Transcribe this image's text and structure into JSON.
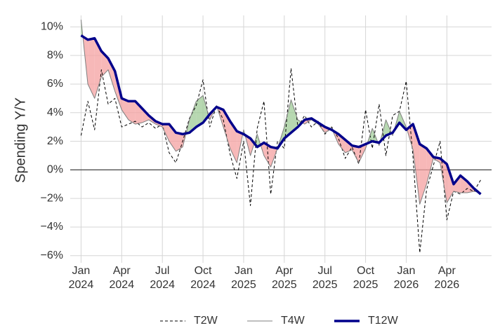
{
  "chart_data": {
    "type": "line",
    "ylabel": "Spending Y/Y",
    "x": [
      0,
      0.5,
      1,
      1.5,
      2,
      2.5,
      3,
      3.5,
      4,
      4.5,
      5,
      5.5,
      6,
      6.5,
      7,
      7.5,
      8,
      8.5,
      9,
      9.5,
      10,
      10.5,
      11,
      11.5,
      12,
      12.5,
      13,
      13.5,
      14,
      14.5,
      15,
      15.5,
      16,
      16.5,
      17,
      17.5,
      18,
      18.5,
      19,
      19.5,
      20,
      20.5,
      21,
      21.5,
      22,
      22.5,
      23,
      23.5,
      24,
      24.5,
      25,
      25.5,
      26,
      26.5,
      27,
      27.5,
      28,
      28.5,
      29,
      29.5
    ],
    "series": [
      {
        "name": "T2W",
        "color": "#000000",
        "style": "dashed",
        "width": 1,
        "values": [
          2.4,
          4.8,
          2.8,
          7.0,
          4.6,
          5.0,
          3.0,
          3.2,
          3.4,
          3.0,
          3.3,
          2.9,
          3.2,
          1.2,
          0.5,
          2.0,
          3.6,
          4.5,
          6.3,
          3.0,
          4.5,
          3.5,
          1.1,
          -0.6,
          2.0,
          -2.5,
          2.9,
          4.8,
          -1.7,
          2.0,
          1.5,
          7.1,
          3.0,
          3.8,
          3.0,
          3.4,
          2.5,
          3.0,
          2.2,
          0.8,
          1.6,
          0.4,
          4.2,
          1.5,
          4.6,
          1.0,
          3.8,
          4.1,
          6.2,
          0.9,
          -5.8,
          -1.4,
          0.3,
          2.0,
          -3.5,
          -1.5,
          -1.7,
          -1.3,
          -1.5,
          -0.7
        ]
      },
      {
        "name": "T4W",
        "color": "#7f7f7f",
        "style": "solid",
        "width": 1,
        "values": [
          10.5,
          6.0,
          5.0,
          6.5,
          7.0,
          5.5,
          4.2,
          3.5,
          3.2,
          3.3,
          3.5,
          3.2,
          3.0,
          2.0,
          1.3,
          1.6,
          3.5,
          4.8,
          5.2,
          3.5,
          4.5,
          3.0,
          1.5,
          0.5,
          2.8,
          1.0,
          2.5,
          1.0,
          0.2,
          1.5,
          3.0,
          4.9,
          3.5,
          3.2,
          3.5,
          3.2,
          2.6,
          2.9,
          1.8,
          1.2,
          1.4,
          0.5,
          1.5,
          2.9,
          1.7,
          3.5,
          2.4,
          4.1,
          3.0,
          1.4,
          -2.4,
          -1.0,
          0.8,
          0.5,
          -2.3,
          -1.5,
          -1.6,
          -1.6,
          -1.5,
          -1.6
        ]
      },
      {
        "name": "T12W",
        "color": "#00008b",
        "style": "solid",
        "width": 3.5,
        "values": [
          9.4,
          9.1,
          9.2,
          8.3,
          7.8,
          6.9,
          5.0,
          4.8,
          4.8,
          4.3,
          3.8,
          3.4,
          3.2,
          3.2,
          2.6,
          2.5,
          2.6,
          3.0,
          3.3,
          3.9,
          4.4,
          4.2,
          3.4,
          2.7,
          2.5,
          2.2,
          1.6,
          1.9,
          1.6,
          1.5,
          2.2,
          2.6,
          3.0,
          3.5,
          3.6,
          3.3,
          3.0,
          2.8,
          2.5,
          2.1,
          1.7,
          1.6,
          1.8,
          2.0,
          1.9,
          2.4,
          2.6,
          3.3,
          2.8,
          3.2,
          1.8,
          1.5,
          0.9,
          0.8,
          0.4,
          -1.0,
          -0.4,
          -0.8,
          -1.3,
          -1.7
        ]
      }
    ],
    "fill_between": {
      "series": [
        1,
        2
      ],
      "above_color": "#9fcb97",
      "below_color": "#f4a0a0"
    },
    "xlim": [
      -0.8,
      30.3
    ],
    "xticks": [
      {
        "value": 0,
        "label": [
          "Jan",
          "2024"
        ]
      },
      {
        "value": 3,
        "label": [
          "Apr",
          "2024"
        ]
      },
      {
        "value": 6,
        "label": [
          "Jul",
          "2024"
        ]
      },
      {
        "value": 9,
        "label": [
          "Oct",
          "2024"
        ]
      },
      {
        "value": 12,
        "label": [
          "Jan",
          "2025"
        ]
      },
      {
        "value": 15,
        "label": [
          "Apr",
          "2025"
        ]
      },
      {
        "value": 18,
        "label": [
          "Jul",
          "2025"
        ]
      },
      {
        "value": 21,
        "label": [
          "Oct",
          "2025"
        ]
      },
      {
        "value": 24,
        "label": [
          "Jan",
          "2026"
        ]
      },
      {
        "value": 27,
        "label": [
          "Apr",
          "2026"
        ]
      }
    ],
    "ylim": [
      -6.5,
      10.8
    ],
    "yticks": [
      {
        "value": -6,
        "label": "−6%"
      },
      {
        "value": -4,
        "label": "−4%"
      },
      {
        "value": -2,
        "label": "−2%"
      },
      {
        "value": 0,
        "label": "0%"
      },
      {
        "value": 2,
        "label": "2%"
      },
      {
        "value": 4,
        "label": "4%"
      },
      {
        "value": 6,
        "label": "6%"
      },
      {
        "value": 8,
        "label": "8%"
      },
      {
        "value": 10,
        "label": "10%"
      }
    ],
    "zero_line": true,
    "grid": true,
    "legend": "bottom"
  }
}
